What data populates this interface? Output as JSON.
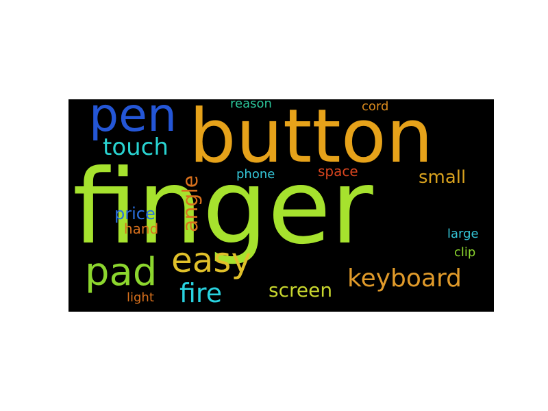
{
  "wordcloud": {
    "words": [
      {
        "text": "finger",
        "color": "#a6e22e"
      },
      {
        "text": "button",
        "color": "#e6a21a"
      },
      {
        "text": "pen",
        "color": "#2456d6"
      },
      {
        "text": "touch",
        "color": "#29d3d1"
      },
      {
        "text": "reason",
        "color": "#2bc79b"
      },
      {
        "text": "cord",
        "color": "#d98a1e"
      },
      {
        "text": "angle",
        "color": "#d9711d"
      },
      {
        "text": "phone",
        "color": "#35c7d9"
      },
      {
        "text": "space",
        "color": "#d9451e"
      },
      {
        "text": "small",
        "color": "#d9a21e"
      },
      {
        "text": "price",
        "color": "#2a6fe0"
      },
      {
        "text": "hand",
        "color": "#d9711d"
      },
      {
        "text": "large",
        "color": "#35c7d9"
      },
      {
        "text": "clip",
        "color": "#8cd62e"
      },
      {
        "text": "pad",
        "color": "#8cd62e"
      },
      {
        "text": "easy",
        "color": "#e0c02a"
      },
      {
        "text": "keyboard",
        "color": "#e09a2a"
      },
      {
        "text": "fire",
        "color": "#29d3e0"
      },
      {
        "text": "screen",
        "color": "#c8d62e"
      },
      {
        "text": "light",
        "color": "#d9711d"
      }
    ]
  }
}
